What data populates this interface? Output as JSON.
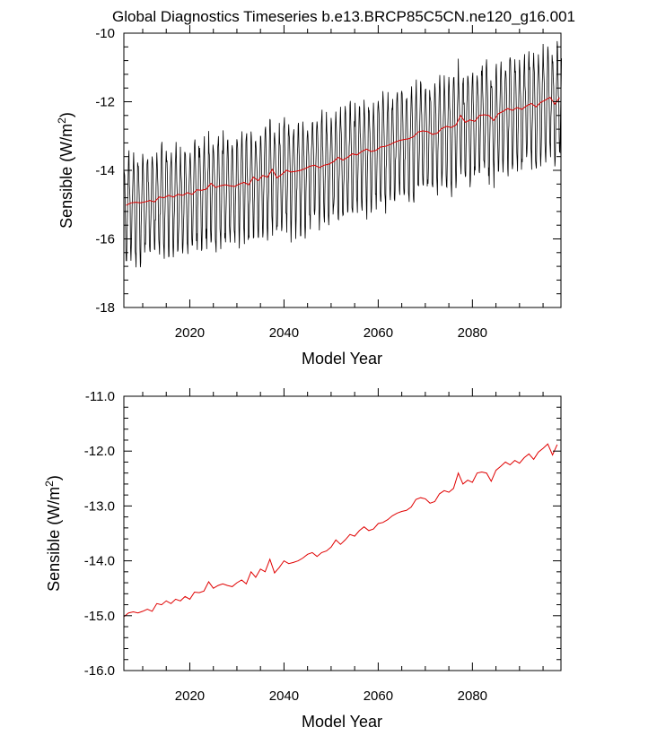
{
  "title": "Global Diagnostics Timeseries b.e13.BRCP85C5CN.ne120_g16.001",
  "colors": {
    "monthly": "#000000",
    "annual": "#e00000",
    "axes": "#000000"
  },
  "chart_data": [
    {
      "type": "line",
      "name": "monthly-and-annual",
      "xlabel": "Model Year",
      "ylabel": "Sensible (W/m",
      "ylabel_sup": "2",
      "ylabel_close": ")",
      "xlim": [
        2006,
        2098.8
      ],
      "ylim": [
        -18,
        -10
      ],
      "xticks": [
        2020,
        2040,
        2060,
        2080
      ],
      "yticks": [
        -18,
        -16,
        -14,
        -12,
        -10
      ],
      "xtick_labels": [
        "2020",
        "2040",
        "2060",
        "2080"
      ],
      "ytick_labels": [
        "-18",
        "-16",
        "-14",
        "-12",
        "-10"
      ],
      "grid": false,
      "series": [
        {
          "name": "monthly",
          "generated": "seasonal cycle around annual mean, amplitude ~1.1 W/m2, annual cycle",
          "source": "annual"
        },
        {
          "name": "annual",
          "source": "annual"
        }
      ]
    },
    {
      "type": "line",
      "name": "annual-mean",
      "xlabel": "Model Year",
      "ylabel": "Sensible (W/m",
      "ylabel_sup": "2",
      "ylabel_close": ")",
      "xlim": [
        2006,
        2098.8
      ],
      "ylim": [
        -16,
        -11
      ],
      "xticks": [
        2020,
        2040,
        2060,
        2080
      ],
      "yticks": [
        -16,
        -15,
        -14,
        -13,
        -12,
        -11
      ],
      "xtick_labels": [
        "2020",
        "2040",
        "2060",
        "2080"
      ],
      "ytick_labels": [
        "-16.0",
        "-15.0",
        "-14.0",
        "-13.0",
        "-12.0",
        "-11.0"
      ],
      "grid": false,
      "series": [
        {
          "name": "annual",
          "source": "annual"
        }
      ]
    }
  ],
  "annual": {
    "x": [
      2006,
      2007,
      2008,
      2009,
      2010,
      2011,
      2012,
      2013,
      2014,
      2015,
      2016,
      2017,
      2018,
      2019,
      2020,
      2021,
      2022,
      2023,
      2024,
      2025,
      2026,
      2027,
      2028,
      2029,
      2030,
      2031,
      2032,
      2033,
      2034,
      2035,
      2036,
      2037,
      2038,
      2039,
      2040,
      2041,
      2042,
      2043,
      2044,
      2045,
      2046,
      2047,
      2048,
      2049,
      2050,
      2051,
      2052,
      2053,
      2054,
      2055,
      2056,
      2057,
      2058,
      2059,
      2060,
      2061,
      2062,
      2063,
      2064,
      2065,
      2066,
      2067,
      2068,
      2069,
      2070,
      2071,
      2072,
      2073,
      2074,
      2075,
      2076,
      2077,
      2078,
      2079,
      2080,
      2081,
      2082,
      2083,
      2084,
      2085,
      2086,
      2087,
      2088,
      2089,
      2090,
      2091,
      2092,
      2093,
      2094,
      2095,
      2096,
      2097,
      2098
    ],
    "y": [
      -15.02,
      -14.95,
      -14.93,
      -14.95,
      -14.92,
      -14.88,
      -14.92,
      -14.78,
      -14.8,
      -14.73,
      -14.78,
      -14.7,
      -14.73,
      -14.65,
      -14.7,
      -14.57,
      -14.58,
      -14.55,
      -14.38,
      -14.5,
      -14.45,
      -14.42,
      -14.45,
      -14.47,
      -14.4,
      -14.35,
      -14.42,
      -14.2,
      -14.3,
      -14.15,
      -14.2,
      -13.97,
      -14.22,
      -14.12,
      -14.0,
      -14.05,
      -14.03,
      -14.0,
      -13.95,
      -13.88,
      -13.85,
      -13.92,
      -13.85,
      -13.82,
      -13.75,
      -13.62,
      -13.7,
      -13.62,
      -13.52,
      -13.55,
      -13.45,
      -13.38,
      -13.45,
      -13.42,
      -13.32,
      -13.3,
      -13.25,
      -13.18,
      -13.13,
      -13.1,
      -13.08,
      -13.02,
      -12.88,
      -12.85,
      -12.87,
      -12.95,
      -12.92,
      -12.78,
      -12.72,
      -12.75,
      -12.68,
      -12.4,
      -12.6,
      -12.53,
      -12.57,
      -12.4,
      -12.38,
      -12.4,
      -12.55,
      -12.35,
      -12.28,
      -12.2,
      -12.25,
      -12.17,
      -12.22,
      -12.12,
      -12.05,
      -12.15,
      -12.02,
      -11.95,
      -11.87,
      -12.07,
      -11.88
    ]
  }
}
